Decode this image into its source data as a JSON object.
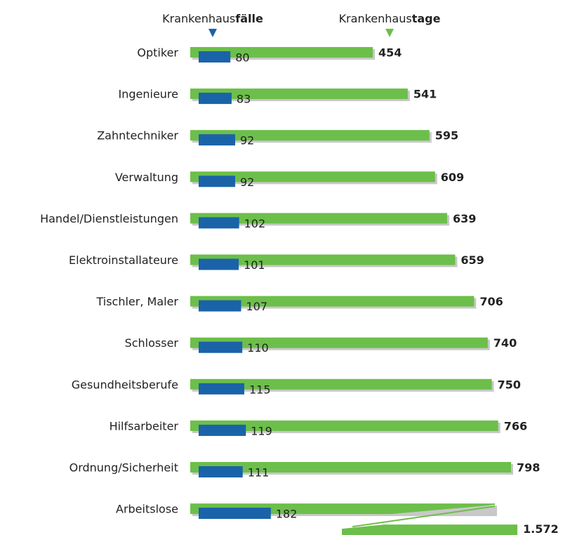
{
  "chart_data": {
    "type": "bar",
    "orientation": "horizontal",
    "categories": [
      "Optiker",
      "Ingenieure",
      "Zahntechniker",
      "Verwaltung",
      "Handel/Dienstleistungen",
      "Elektroinstallateure",
      "Tischler, Maler",
      "Schlosser",
      "Gesundheitsberufe",
      "Hilfsarbeiter",
      "Ordnung/Sicherheit",
      "Arbeitslose"
    ],
    "series": [
      {
        "name": "Krankenhausfälle",
        "color": "#1a63a8",
        "values": [
          80,
          83,
          92,
          92,
          102,
          101,
          107,
          110,
          115,
          119,
          111,
          182
        ]
      },
      {
        "name": "Krankenhaustage",
        "color": "#6cbf4a",
        "values": [
          454,
          541,
          595,
          609,
          639,
          659,
          706,
          740,
          750,
          766,
          798,
          1572
        ],
        "value_labels": [
          "454",
          "541",
          "595",
          "609",
          "639",
          "659",
          "706",
          "740",
          "750",
          "766",
          "798",
          "1.572"
        ]
      }
    ]
  }
}
